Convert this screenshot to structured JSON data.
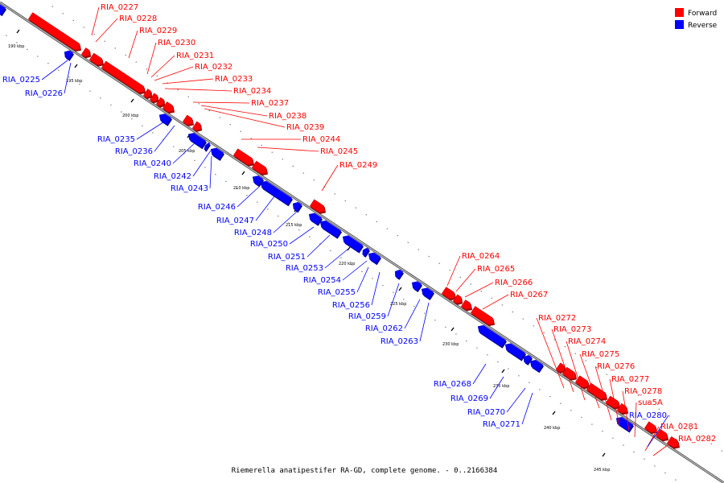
{
  "legend": {
    "forward_label": "Forward",
    "reverse_label": "Reverse",
    "forward_color": "#ff0000",
    "reverse_color": "#0000ff"
  },
  "caption": "Riemerella anatipestifer RA-GD, complete genome. - 0..2166384",
  "ticks": [
    "190 kbp",
    "195 kbp",
    "200 kbp",
    "205 kbp",
    "210 kbp",
    "215 kbp",
    "220 kbp",
    "225 kbp",
    "230 kbp",
    "235 kbp",
    "240 kbp",
    "245 kbp"
  ],
  "forward_genes": [
    "RIA_0227",
    "RIA_0228",
    "RIA_0229",
    "RIA_0230",
    "RIA_0231",
    "RIA_0232",
    "RIA_0233",
    "RIA_0234",
    "RIA_0237",
    "RIA_0238",
    "RIA_0239",
    "RIA_0244",
    "RIA_0245",
    "RIA_0249",
    "RIA_0264",
    "RIA_0265",
    "RIA_0266",
    "RIA_0267",
    "RIA_0272",
    "RIA_0273",
    "RIA_0274",
    "RIA_0275",
    "RIA_0276",
    "RIA_0277",
    "RIA_0278",
    "sua5A",
    "RIA_0281",
    "RIA_0282"
  ],
  "reverse_genes": [
    "RIA_0225",
    "RIA_0226",
    "RIA_0235",
    "RIA_0236",
    "RIA_0240",
    "RIA_0242",
    "RIA_0243",
    "RIA_0246",
    "RIA_0247",
    "RIA_0248",
    "RIA_0250",
    "RIA_0251",
    "RIA_0253",
    "RIA_0254",
    "RIA_0255",
    "RIA_0256",
    "RIA_0259",
    "RIA_0262",
    "RIA_0263",
    "RIA_0268",
    "RIA_0269",
    "RIA_0270",
    "RIA_0271",
    "RIA_0280"
  ]
}
